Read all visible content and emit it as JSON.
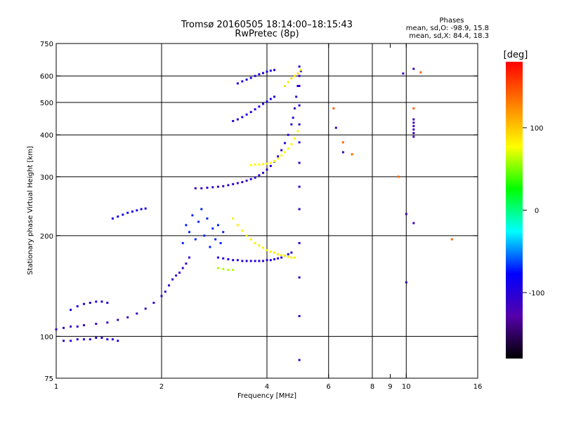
{
  "chart_data": {
    "type": "scatter",
    "title": "Tromsø 20160505 18:14:00–18:15:43",
    "subtitle": "RwPretec (8p)",
    "xlabel": "Frequency [MHz]",
    "ylabel": "Stationary phase Virtual Height [km]",
    "xscale": "log",
    "yscale": "log",
    "xlim": [
      1,
      16
    ],
    "ylim": [
      75,
      750
    ],
    "x_ticks": [
      1,
      2,
      4,
      6,
      8,
      9,
      10,
      16
    ],
    "x_tick_labels": [
      "1",
      "2",
      "4",
      "6",
      "8",
      "9",
      "10",
      "16"
    ],
    "x_grid": [
      2,
      4,
      6,
      8,
      10
    ],
    "y_ticks": [
      75,
      100,
      200,
      300,
      400,
      500,
      600,
      750
    ],
    "y_tick_labels": [
      "75",
      "100",
      "200",
      "300",
      "400",
      "500",
      "600",
      "750"
    ],
    "y_grid": [
      100,
      200,
      300,
      400,
      500,
      600
    ],
    "grid": true,
    "colorbar": {
      "label": "[deg]",
      "range": [
        -180,
        180
      ],
      "tick_values": [
        100,
        0,
        -100
      ],
      "tick_labels": [
        "100",
        "0",
        "-100"
      ],
      "colors": [
        "#000000",
        "#5500aa",
        "#0000ff",
        "#00ffff",
        "#00ff00",
        "#ffff00",
        "#ff8000",
        "#ff0000"
      ]
    },
    "phases_header": "Phases",
    "phases_o": "mean, sd,O: -98.9, 15.8",
    "phases_x": "mean, sd,X: 84.4, 18.3",
    "series": [
      {
        "phase": -110,
        "x": [
          1.0,
          1.05,
          1.1,
          1.15,
          1.2,
          1.3,
          1.4,
          1.5,
          1.6,
          1.7,
          1.8,
          1.9,
          2.0,
          2.05,
          2.1,
          2.15,
          2.2,
          2.25,
          2.3,
          2.35,
          2.4
        ],
        "y": [
          105,
          106,
          107,
          107,
          108,
          109,
          110,
          112,
          114,
          117,
          121,
          126,
          132,
          136,
          142,
          148,
          152,
          155,
          160,
          165,
          172
        ]
      },
      {
        "phase": -105,
        "x": [
          2.5,
          2.6,
          2.7,
          2.8,
          2.9,
          3.0,
          3.1,
          3.2,
          3.3,
          3.4,
          3.5,
          3.6,
          3.7,
          3.8,
          3.9,
          4.0,
          4.1,
          4.2,
          4.3,
          4.4,
          4.5,
          4.6,
          4.7,
          4.75,
          4.8,
          4.85,
          4.9,
          4.95,
          5.0
        ],
        "y": [
          277,
          277,
          278,
          279,
          280,
          281,
          283,
          285,
          287,
          289,
          292,
          295,
          298,
          303,
          308,
          315,
          323,
          333,
          345,
          360,
          378,
          400,
          430,
          450,
          480,
          520,
          560,
          600,
          620
        ]
      },
      {
        "phase": -100,
        "x": [
          2.9,
          3.0,
          3.1,
          3.2,
          3.3,
          3.4,
          3.5,
          3.6,
          3.7,
          3.8,
          3.9,
          4.0,
          4.1,
          4.2,
          4.3,
          4.4,
          4.5,
          4.6,
          4.7
        ],
        "y": [
          172,
          171,
          170,
          169,
          169,
          168,
          168,
          168,
          168,
          168,
          168,
          169,
          169,
          170,
          171,
          172,
          174,
          176,
          178
        ]
      },
      {
        "phase": -95,
        "x": [
          3.2,
          3.3,
          3.4,
          3.5,
          3.6,
          3.7,
          3.8,
          3.9,
          4.0,
          4.1,
          4.2
        ],
        "y": [
          440,
          445,
          452,
          460,
          468,
          477,
          486,
          495,
          503,
          512,
          520
        ]
      },
      {
        "phase": -95,
        "x": [
          3.3,
          3.4,
          3.5,
          3.6,
          3.7,
          3.8,
          3.9,
          4.0,
          4.1,
          4.2
        ],
        "y": [
          570,
          578,
          585,
          592,
          600,
          607,
          612,
          618,
          622,
          625
        ]
      },
      {
        "phase": -90,
        "x": [
          1.45,
          1.5,
          1.55,
          1.6,
          1.65,
          1.7,
          1.75,
          1.8
        ],
        "y": [
          225,
          228,
          231,
          234,
          236,
          238,
          240,
          241
        ]
      },
      {
        "phase": -95,
        "x": [
          1.1,
          1.15,
          1.2,
          1.25,
          1.3,
          1.35,
          1.4
        ],
        "y": [
          120,
          123,
          125,
          126,
          127,
          127,
          126
        ]
      },
      {
        "phase": -100,
        "x": [
          1.05,
          1.1,
          1.15,
          1.2,
          1.25,
          1.3,
          1.35,
          1.4,
          1.45,
          1.5
        ],
        "y": [
          97,
          97,
          98,
          98,
          98,
          99,
          99,
          98,
          98,
          97
        ]
      },
      {
        "phase": -70,
        "x": [
          2.3,
          2.35,
          2.4,
          2.45,
          2.5,
          2.55,
          2.6,
          2.65,
          2.7,
          2.75,
          2.8,
          2.85,
          2.9,
          2.95,
          3.0
        ],
        "y": [
          190,
          215,
          205,
          230,
          195,
          220,
          240,
          200,
          225,
          185,
          210,
          195,
          215,
          190,
          205
        ]
      },
      {
        "phase": 80,
        "x": [
          3.6,
          3.7,
          3.8,
          3.9,
          4.0,
          4.1,
          4.2,
          4.3,
          4.4,
          4.5,
          4.6,
          4.7,
          4.8,
          4.9
        ],
        "y": [
          325,
          326,
          326,
          327,
          328,
          330,
          334,
          340,
          347,
          355,
          364,
          375,
          390,
          410
        ]
      },
      {
        "phase": 85,
        "x": [
          3.2,
          3.3,
          3.4,
          3.5,
          3.6,
          3.7,
          3.8,
          3.9,
          4.0,
          4.1,
          4.2,
          4.3,
          4.4,
          4.5,
          4.6,
          4.7,
          4.8
        ],
        "y": [
          225,
          215,
          207,
          200,
          195,
          190,
          187,
          184,
          181,
          179,
          178,
          176,
          175,
          174,
          173,
          172,
          172
        ]
      },
      {
        "phase": 60,
        "x": [
          2.9,
          3.0,
          3.1,
          3.2
        ],
        "y": [
          160,
          159,
          158,
          158
        ]
      },
      {
        "phase": 90,
        "x": [
          4.5,
          4.6,
          4.7,
          4.8,
          4.9,
          5.0
        ],
        "y": [
          560,
          575,
          590,
          600,
          610,
          625
        ]
      },
      {
        "phase": -100,
        "x": [
          4.95,
          4.95,
          4.95,
          4.95,
          4.95,
          4.95,
          4.95,
          4.95,
          4.95,
          4.95,
          4.95,
          4.95
        ],
        "y": [
          85,
          115,
          150,
          190,
          240,
          280,
          330,
          380,
          430,
          490,
          560,
          640
        ]
      },
      {
        "phase": -110,
        "x": [
          10.5,
          10.5,
          10.5,
          10.5,
          10.5,
          10.5
        ],
        "y": [
          395,
          405,
          415,
          425,
          435,
          445
        ]
      },
      {
        "phase": 140,
        "x": [
          6.2,
          6.6,
          7.0,
          9.5,
          10.5,
          11.0,
          13.5
        ],
        "y": [
          480,
          380,
          350,
          300,
          480,
          615,
          195
        ]
      },
      {
        "phase": -110,
        "x": [
          6.3,
          6.6,
          9.8,
          10.0,
          10.0,
          10.5,
          10.5
        ],
        "y": [
          420,
          355,
          610,
          232,
          145,
          218,
          630
        ]
      }
    ]
  }
}
